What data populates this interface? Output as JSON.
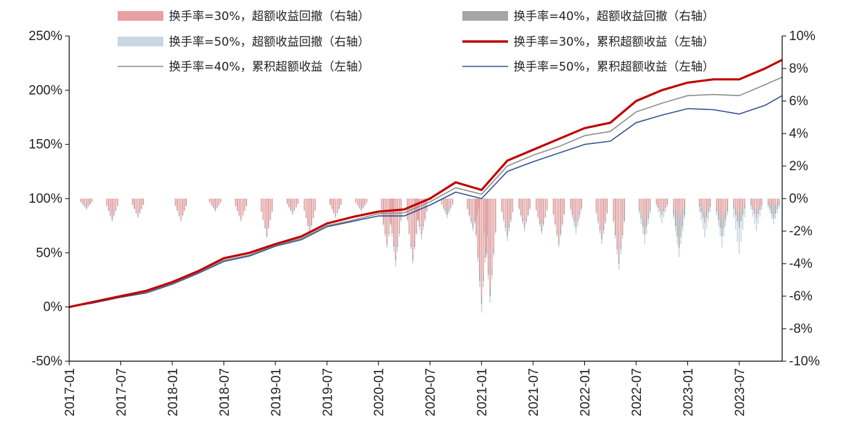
{
  "chart_data": {
    "type": "line",
    "x_axis": {
      "tick_labels": [
        "2017-01",
        "2017-07",
        "2018-01",
        "2018-07",
        "2019-01",
        "2019-07",
        "2020-01",
        "2020-07",
        "2021-01",
        "2021-07",
        "2022-01",
        "2022-07",
        "2023-01",
        "2023-07"
      ],
      "range": [
        "2017-01",
        "2023-12"
      ]
    },
    "y_left": {
      "tick_labels": [
        "250%",
        "200%",
        "150%",
        "100%",
        "50%",
        "0%",
        "-50%"
      ],
      "range": [
        -50,
        250
      ]
    },
    "y_right": {
      "tick_labels": [
        "10%",
        "8%",
        "6%",
        "4%",
        "2%",
        "0%",
        "-2%",
        "-4%",
        "-6%",
        "-8%",
        "-10%"
      ],
      "range": [
        -10,
        10
      ]
    },
    "legend": [
      "换手率=30%，超额收益回撤（右轴）",
      "换手率=40%，超额收益回撤（右轴）",
      "换手率=50%，超额收益回撤（右轴）",
      "换手率=30%，累积超额收益（左轴）",
      "换手率=40%，累积超额收益（左轴）",
      "换手率=50%，累积超额收益（左轴）"
    ],
    "series": [
      {
        "name": "换手率=30%，累积超额收益（左轴）",
        "axis": "left",
        "color": "#c00000",
        "x": [
          "2017-01",
          "2017-04",
          "2017-07",
          "2017-10",
          "2018-01",
          "2018-04",
          "2018-07",
          "2018-10",
          "2019-01",
          "2019-04",
          "2019-07",
          "2019-10",
          "2020-01",
          "2020-04",
          "2020-07",
          "2020-10",
          "2021-01",
          "2021-04",
          "2021-07",
          "2021-10",
          "2022-01",
          "2022-04",
          "2022-07",
          "2022-10",
          "2023-01",
          "2023-04",
          "2023-07",
          "2023-10",
          "2023-12"
        ],
        "y": [
          0,
          5,
          10,
          15,
          23,
          33,
          45,
          50,
          58,
          65,
          77,
          83,
          88,
          90,
          100,
          115,
          108,
          135,
          145,
          155,
          165,
          170,
          190,
          200,
          207,
          210,
          210,
          220,
          228
        ]
      },
      {
        "name": "换手率=40%，累积超额收益（左轴）",
        "axis": "left",
        "color": "#8c8c8c",
        "x": [
          "2017-01",
          "2017-04",
          "2017-07",
          "2017-10",
          "2018-01",
          "2018-04",
          "2018-07",
          "2018-10",
          "2019-01",
          "2019-04",
          "2019-07",
          "2019-10",
          "2020-01",
          "2020-04",
          "2020-07",
          "2020-10",
          "2021-01",
          "2021-04",
          "2021-07",
          "2021-10",
          "2022-01",
          "2022-04",
          "2022-07",
          "2022-10",
          "2023-01",
          "2023-04",
          "2023-07",
          "2023-10",
          "2023-12"
        ],
        "y": [
          0,
          5,
          10,
          14,
          22,
          32,
          43,
          48,
          57,
          63,
          75,
          80,
          86,
          87,
          97,
          110,
          104,
          130,
          140,
          148,
          158,
          162,
          180,
          188,
          195,
          196,
          195,
          205,
          212
        ]
      },
      {
        "name": "换手率=50%，累积超额收益（左轴）",
        "axis": "left",
        "color": "#2f528f",
        "x": [
          "2017-01",
          "2017-04",
          "2017-07",
          "2017-10",
          "2018-01",
          "2018-04",
          "2018-07",
          "2018-10",
          "2019-01",
          "2019-04",
          "2019-07",
          "2019-10",
          "2020-01",
          "2020-04",
          "2020-07",
          "2020-10",
          "2021-01",
          "2021-04",
          "2021-07",
          "2021-10",
          "2022-01",
          "2022-04",
          "2022-07",
          "2022-10",
          "2023-01",
          "2023-04",
          "2023-07",
          "2023-10",
          "2023-12"
        ],
        "y": [
          0,
          4,
          9,
          13,
          21,
          31,
          42,
          47,
          56,
          62,
          74,
          79,
          84,
          84,
          94,
          106,
          100,
          125,
          134,
          142,
          150,
          153,
          170,
          177,
          183,
          182,
          178,
          186,
          195
        ]
      },
      {
        "name": "换手率=30%，超额收益回撤（右轴）",
        "axis": "right",
        "type": "bar",
        "color": "#e8a0a0",
        "x": [
          "2017-03",
          "2017-06",
          "2017-09",
          "2018-02",
          "2018-06",
          "2018-09",
          "2018-12",
          "2019-03",
          "2019-05",
          "2019-08",
          "2019-11",
          "2020-02",
          "2020-03",
          "2020-05",
          "2020-06",
          "2020-09",
          "2020-12",
          "2021-01",
          "2021-02",
          "2021-04",
          "2021-06",
          "2021-08",
          "2021-10",
          "2021-12",
          "2022-03",
          "2022-05",
          "2022-08",
          "2022-10",
          "2022-12",
          "2023-03",
          "2023-05",
          "2023-07",
          "2023-09",
          "2023-11"
        ],
        "y": [
          -0.5,
          -1.2,
          -1.0,
          -1.2,
          -0.6,
          -1.3,
          -2.2,
          -0.8,
          -2.0,
          -1.0,
          -0.6,
          -2.6,
          -3.5,
          -3.5,
          -2.0,
          -0.8,
          -1.5,
          -6.0,
          -5.5,
          -2.0,
          -1.5,
          -1.8,
          -2.5,
          -1.5,
          -2.2,
          -3.5,
          -1.5,
          -0.8,
          -1.2,
          -0.9,
          -1.3,
          -1.0,
          -0.8,
          -0.5
        ]
      },
      {
        "name": "换手率=40%，超额收益回撤（右轴）",
        "axis": "right",
        "type": "bar",
        "color": "#a6a6a6",
        "x": [
          "2017-03",
          "2017-06",
          "2017-09",
          "2018-02",
          "2018-06",
          "2018-09",
          "2018-12",
          "2019-03",
          "2019-05",
          "2019-08",
          "2019-11",
          "2020-02",
          "2020-03",
          "2020-05",
          "2020-06",
          "2020-09",
          "2020-12",
          "2021-01",
          "2021-02",
          "2021-04",
          "2021-06",
          "2021-08",
          "2021-10",
          "2021-12",
          "2022-03",
          "2022-05",
          "2022-08",
          "2022-10",
          "2022-12",
          "2023-03",
          "2023-05",
          "2023-07",
          "2023-09",
          "2023-11"
        ],
        "y": [
          -0.6,
          -1.3,
          -1.1,
          -1.3,
          -0.7,
          -1.3,
          -2.3,
          -0.9,
          -2.1,
          -1.1,
          -0.7,
          -2.8,
          -3.8,
          -3.8,
          -2.2,
          -1.0,
          -1.8,
          -6.5,
          -6.0,
          -2.3,
          -1.8,
          -2.0,
          -2.8,
          -1.8,
          -2.5,
          -4.0,
          -2.2,
          -1.0,
          -3.0,
          -1.5,
          -2.3,
          -1.8,
          -1.2,
          -1.2
        ]
      },
      {
        "name": "换手率=50%，超额收益回撤（右轴）",
        "axis": "right",
        "type": "bar",
        "color": "#c9d6e3",
        "x": [
          "2017-03",
          "2017-06",
          "2017-09",
          "2018-02",
          "2018-06",
          "2018-09",
          "2018-12",
          "2019-03",
          "2019-05",
          "2019-08",
          "2019-11",
          "2020-02",
          "2020-03",
          "2020-05",
          "2020-06",
          "2020-09",
          "2020-12",
          "2021-01",
          "2021-02",
          "2021-04",
          "2021-06",
          "2021-08",
          "2021-10",
          "2021-12",
          "2022-03",
          "2022-05",
          "2022-08",
          "2022-10",
          "2022-12",
          "2023-03",
          "2023-05",
          "2023-07",
          "2023-09",
          "2023-11"
        ],
        "y": [
          -0.7,
          -1.4,
          -1.2,
          -1.4,
          -0.8,
          -1.4,
          -2.4,
          -1.0,
          -2.2,
          -1.2,
          -0.8,
          -3.0,
          -4.2,
          -4.0,
          -2.5,
          -1.2,
          -2.0,
          -7.0,
          -6.4,
          -2.6,
          -2.0,
          -2.2,
          -3.0,
          -2.2,
          -2.8,
          -4.4,
          -2.8,
          -1.5,
          -3.6,
          -2.4,
          -3.0,
          -3.4,
          -2.0,
          -1.6
        ]
      }
    ]
  }
}
